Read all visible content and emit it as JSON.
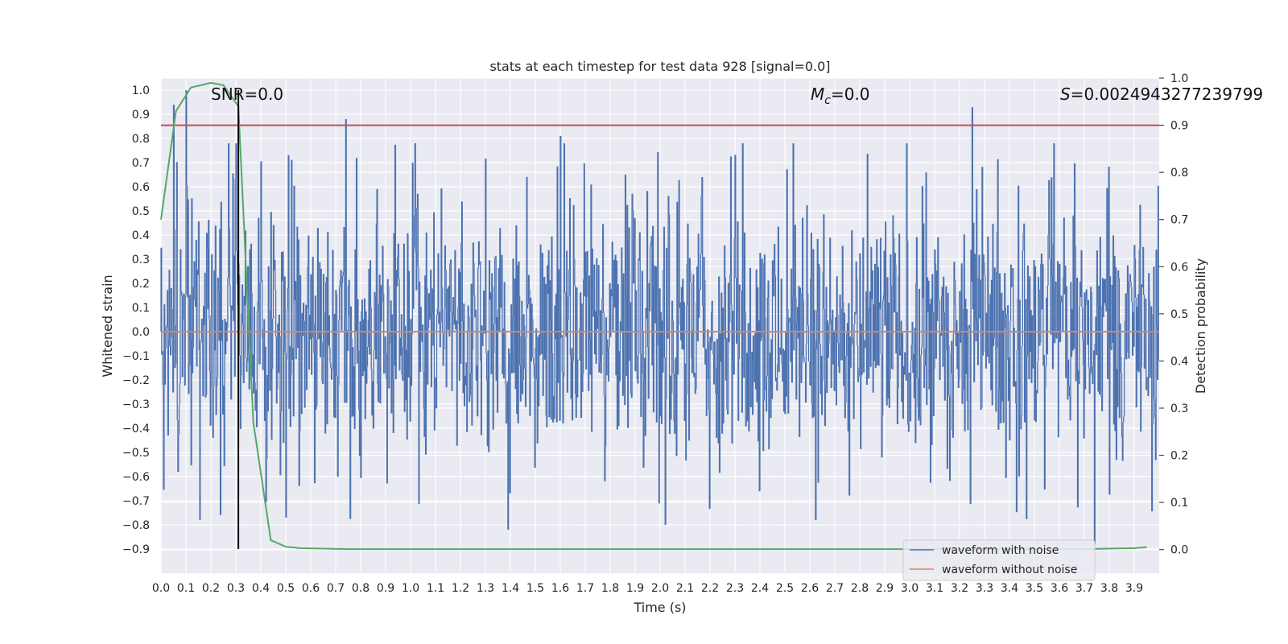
{
  "chart_data": {
    "type": "line",
    "title": "stats at each timestep for test data 928 [signal=0.0]",
    "xlabel": "Time (s)",
    "ylabel": "Whitened strain",
    "y2label": "Detection probability",
    "xlim": [
      0.0,
      4.0
    ],
    "ylim": [
      -1.0,
      1.05
    ],
    "y2lim": [
      -0.05,
      1.0
    ],
    "xticks": [
      0.0,
      0.1,
      0.2,
      0.3,
      0.4,
      0.5,
      0.6,
      0.7,
      0.8,
      0.9,
      1.0,
      1.1,
      1.2,
      1.3,
      1.4,
      1.5,
      1.6,
      1.7,
      1.8,
      1.9,
      2.0,
      2.1,
      2.2,
      2.3,
      2.4,
      2.5,
      2.6,
      2.7,
      2.8,
      2.9,
      3.0,
      3.1,
      3.2,
      3.3,
      3.4,
      3.5,
      3.6,
      3.7,
      3.8,
      3.9
    ],
    "yticks": [
      -0.9,
      -0.8,
      -0.7,
      -0.6,
      -0.5,
      -0.4,
      -0.3,
      -0.2,
      -0.1,
      0.0,
      0.1,
      0.2,
      0.3,
      0.4,
      0.5,
      0.6,
      0.7,
      0.8,
      0.9,
      1.0
    ],
    "y2ticks": [
      0.0,
      0.1,
      0.2,
      0.3,
      0.4,
      0.5,
      0.6,
      0.7,
      0.8,
      0.9,
      1.0
    ],
    "series": [
      {
        "name": "waveform with noise",
        "color": "#4c72b0",
        "axis": "left",
        "kind": "noise",
        "peaks": [
          [
            0.05,
            0.94
          ],
          [
            0.1,
            1.0
          ],
          [
            0.74,
            0.88
          ],
          [
            1.6,
            0.81
          ],
          [
            2.02,
            -0.8
          ],
          [
            3.25,
            0.93
          ],
          [
            3.74,
            -0.88
          ],
          [
            1.39,
            -0.82
          ],
          [
            0.5,
            -0.77
          ]
        ]
      },
      {
        "name": "waveform without noise",
        "color": "#dd8452",
        "axis": "left",
        "x": [
          0.0,
          4.0
        ],
        "values": [
          0.0,
          0.0
        ]
      },
      {
        "name": "detection probability",
        "color": "#55a868",
        "axis": "right",
        "x": [
          0.0,
          0.06,
          0.12,
          0.2,
          0.25,
          0.31,
          0.37,
          0.44,
          0.5,
          0.56,
          0.65,
          0.75,
          1.0,
          2.0,
          3.0,
          3.5,
          3.7,
          3.8,
          3.9,
          3.95
        ],
        "values": [
          0.7,
          0.93,
          0.98,
          0.99,
          0.985,
          0.94,
          0.27,
          0.02,
          0.006,
          0.003,
          0.002,
          0.001,
          0.001,
          0.001,
          0.001,
          0.001,
          0.001,
          0.002,
          0.003,
          0.005
        ]
      }
    ],
    "threshold": {
      "value": 0.9,
      "axis": "right",
      "color": "#c44e52"
    },
    "marker_line": {
      "x": 0.31,
      "color": "#000000"
    },
    "annotations": {
      "snr": "SNR=0.0",
      "mc_symbol": "M",
      "mc_sub": "c",
      "mc_value": "=0.0",
      "s_symbol": "S",
      "s_value": "=0.0024943277239799"
    },
    "legend": {
      "position": "lower right",
      "entries": [
        "waveform with noise",
        "waveform without noise"
      ]
    }
  }
}
